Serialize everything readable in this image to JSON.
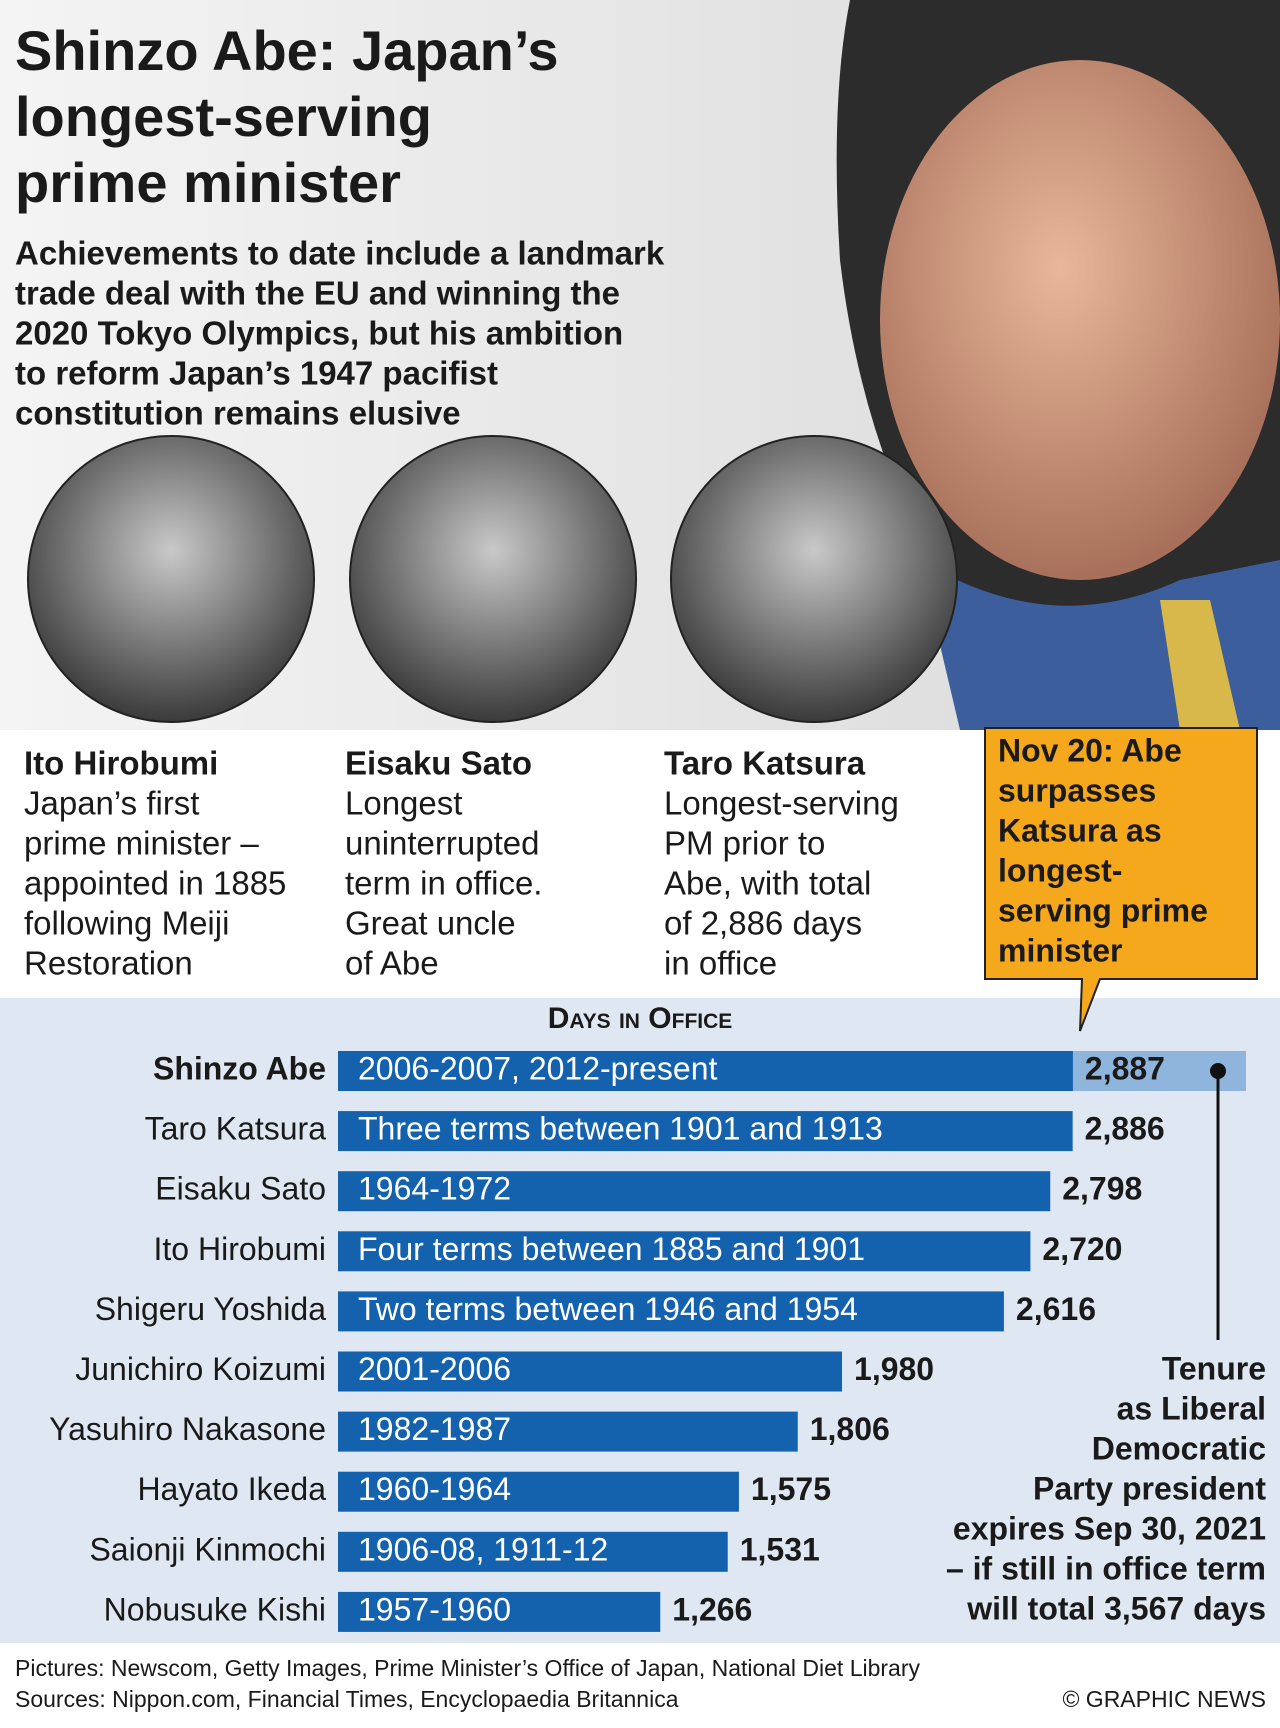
{
  "header": {
    "title": [
      "Shinzo Abe: Japan’s",
      "longest-serving",
      "prime minister"
    ],
    "subtitle": [
      "Achievements to date include a landmark",
      "trade deal with the EU and winning the",
      "2020 Tokyo Olympics, but his ambition",
      "to reform Japan’s 1947 pacifist",
      "constitution remains elusive"
    ]
  },
  "profiles": [
    {
      "name": "Ito Hirobumi",
      "lines": [
        "Japan’s first",
        "prime minister –",
        "appointed in 1885",
        "following Meiji",
        "Restoration"
      ]
    },
    {
      "name": "Eisaku Sato",
      "lines": [
        "Longest",
        "uninterrupted",
        "term in office.",
        "Great uncle",
        "of Abe"
      ]
    },
    {
      "name": "Taro Katsura",
      "lines": [
        "Longest-serving",
        "PM prior to",
        "Abe, with total",
        "of 2,886 days",
        "in office"
      ]
    }
  ],
  "callout": [
    "Nov 20: Abe",
    "surpasses",
    "Katsura as",
    "longest-",
    "serving prime",
    "minister"
  ],
  "chart_data": {
    "type": "bar",
    "orientation": "horizontal",
    "title": "Days in Office",
    "categories": [
      "Shinzo Abe",
      "Taro Katsura",
      "Eisaku Sato",
      "Ito Hirobumi",
      "Shigeru Yoshida",
      "Junichiro Koizumi",
      "Yasuhiro Nakasone",
      "Hayato Ikeda",
      "Saionji Kinmochi",
      "Nobusuke Kishi"
    ],
    "values": [
      2887,
      2886,
      2798,
      2720,
      2616,
      1980,
      1806,
      1575,
      1531,
      1266
    ],
    "value_labels": [
      "2,887",
      "2,886",
      "2,798",
      "2,720",
      "2,616",
      "1,980",
      "1,806",
      "1,575",
      "1,531",
      "1,266"
    ],
    "bar_texts": [
      "2006-2007, 2012-present",
      "Three terms between 1901 and 1913",
      "1964-1972",
      "Four terms between 1885 and 1901",
      "Two terms between 1946 and 1954",
      "2001-2006",
      "1982-1987",
      "1960-1964",
      "1906-08, 1911-12",
      "1957-1960"
    ],
    "color": "#1461ad",
    "projected_value": 3567,
    "projected_color": "#8fb5dd",
    "xlim": [
      0,
      3567
    ],
    "annotation": [
      "Tenure",
      "as Liberal",
      "Democratic",
      "Party president",
      "expires Sep 30, 2021",
      "– if still in office term",
      "will total 3,567 days"
    ]
  },
  "footer": {
    "pictures": "Pictures: Newscom, Getty Images, Prime Minister’s Office of Japan, National Diet Library",
    "sources": "Sources: Nippon.com, Financial Times, Encyclopaedia Britannica",
    "credit": "© GRAPHIC NEWS"
  }
}
